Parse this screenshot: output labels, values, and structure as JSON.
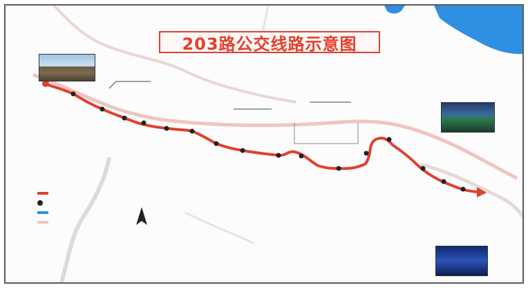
{
  "map": {
    "title": "203路公交线路示意图",
    "subtitle_line1": "",
    "subtitle_line2": "",
    "route_color": "#e0402e",
    "water_color": "#2f8fe0",
    "road_color": "#f0c4c0",
    "start_label": "",
    "end_label": "",
    "left_district_label": "",
    "place_labels": [],
    "stops": [],
    "legend": {
      "items": []
    },
    "footer_line1": "",
    "footer_line2": ""
  }
}
